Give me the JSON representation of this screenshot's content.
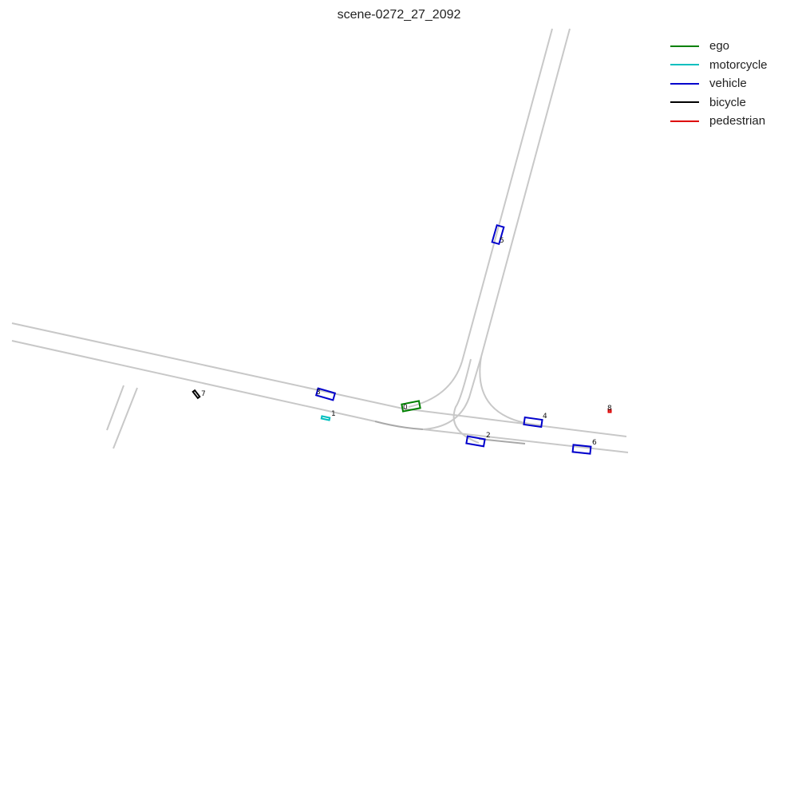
{
  "title": "scene-0272_27_2092",
  "colors": {
    "ego": "#008000",
    "motorcycle": "#00bfbf",
    "vehicle": "#0000cc",
    "bicycle": "#000000",
    "pedestrian": "#dd0000"
  },
  "legend": [
    {
      "category": "ego",
      "label": "ego"
    },
    {
      "category": "motorcycle",
      "label": "motorcycle"
    },
    {
      "category": "vehicle",
      "label": "vehicle"
    },
    {
      "category": "bicycle",
      "label": "bicycle"
    },
    {
      "category": "pedestrian",
      "label": "pedestrian"
    }
  ],
  "agents": [
    {
      "id": "0",
      "category": "ego"
    },
    {
      "id": "1",
      "category": "motorcycle"
    },
    {
      "id": "2",
      "category": "vehicle"
    },
    {
      "id": "3",
      "category": "vehicle"
    },
    {
      "id": "4",
      "category": "vehicle"
    },
    {
      "id": "5",
      "category": "vehicle"
    },
    {
      "id": "6",
      "category": "vehicle"
    },
    {
      "id": "7",
      "category": "bicycle"
    },
    {
      "id": "8",
      "category": "pedestrian"
    }
  ]
}
